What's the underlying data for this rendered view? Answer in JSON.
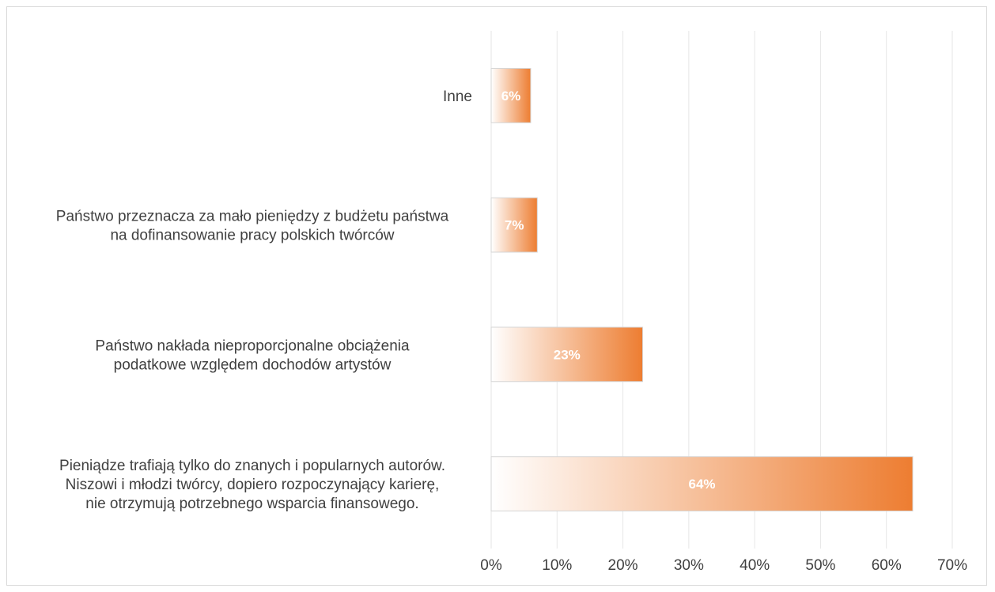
{
  "chart_data": {
    "type": "bar",
    "orientation": "horizontal",
    "categories": [
      [
        "Inne"
      ],
      [
        "Państwo przeznacza za mało pieniędzy z budżetu państwa",
        "na dofinansowanie pracy polskich twórców"
      ],
      [
        "Państwo nakłada nieproporcjonalne obciążenia",
        "podatkowe względem dochodów artystów"
      ],
      [
        "Pieniądze trafiają tylko do znanych i popularnych autorów.",
        "Niszowi i młodzi twórcy, dopiero rozpoczynający karierę,",
        "nie otrzymują potrzebnego wsparcia finansowego."
      ]
    ],
    "values": [
      6,
      7,
      23,
      64
    ],
    "data_labels": [
      "6%",
      "7%",
      "23%",
      "64%"
    ],
    "xlim": [
      0,
      70
    ],
    "x_ticks": [
      "0%",
      "10%",
      "20%",
      "30%",
      "40%",
      "50%",
      "60%",
      "70%"
    ],
    "grid": true,
    "title": "",
    "xlabel": "",
    "ylabel": "",
    "colors": {
      "bar": "#ed7d31",
      "bar_fade": "#ffffff",
      "grid": "#e6e6e6",
      "text": "#404040",
      "label": "#ffffff"
    }
  }
}
